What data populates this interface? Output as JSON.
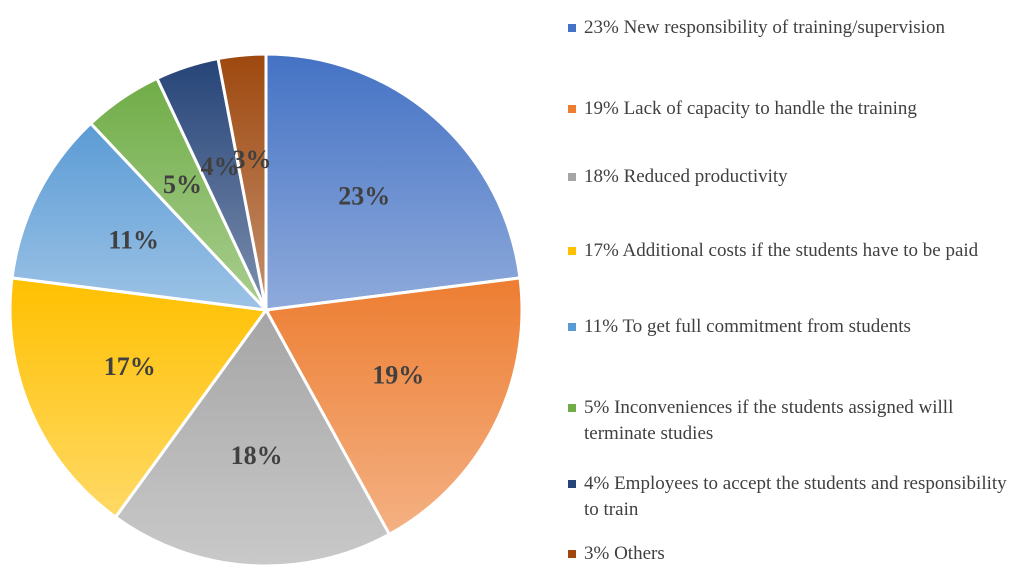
{
  "chart_data": {
    "type": "pie",
    "categories": [
      "23% New responsibility  of training/supervision",
      "19% Lack of capacity to handle the training",
      "18% Reduced productivity",
      "17% Additional costs if the students have to be paid",
      "11% To get full commitment from students",
      "5% Inconveniences if the students assigned willl terminate studies",
      "4% Employees to accept the students and responsibility to train",
      "3% Others"
    ],
    "values": [
      23,
      19,
      18,
      17,
      11,
      5,
      4,
      3
    ],
    "value_labels": [
      "23%",
      "19%",
      "18%",
      "17%",
      "11%",
      "5%",
      "4%",
      "3%"
    ],
    "colors": [
      "#4472c4",
      "#ed7d31",
      "#a5a5a5",
      "#ffc000",
      "#5b9bd5",
      "#70ad47",
      "#264478",
      "#9e480e"
    ],
    "legend": "right"
  }
}
